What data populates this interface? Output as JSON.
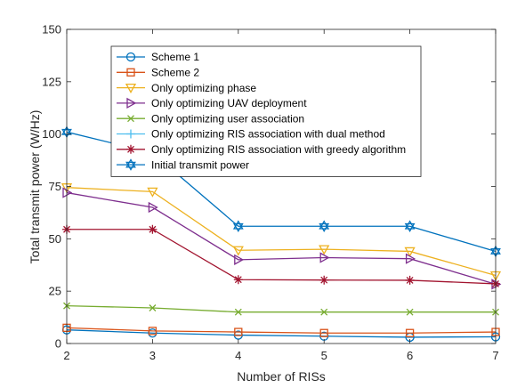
{
  "chart_data": {
    "type": "line",
    "title": "",
    "xlabel": "Number of RISs",
    "ylabel": "Total transmit power (W/Hz)",
    "xlim": [
      2,
      7
    ],
    "ylim": [
      0,
      150
    ],
    "x": [
      2,
      3,
      4,
      5,
      6,
      7
    ],
    "xticks": [
      "2",
      "3",
      "4",
      "5",
      "6",
      "7"
    ],
    "yticks": [
      "0",
      "25",
      "50",
      "75",
      "100",
      "125",
      "150"
    ],
    "grid": false,
    "box": true,
    "legend_position": "top-center",
    "series": [
      {
        "name": "Scheme 1",
        "marker": "circle",
        "color": "#0072BD",
        "values": [
          6.5,
          5,
          4,
          3.5,
          3,
          3.2
        ]
      },
      {
        "name": "Scheme 2",
        "marker": "square",
        "color": "#D95319",
        "values": [
          7.5,
          6,
          5.5,
          5,
          5,
          5.5
        ]
      },
      {
        "name": "Only optimizing phase",
        "marker": "triangle-down",
        "color": "#EDB120",
        "values": [
          74.5,
          72.5,
          44.5,
          45,
          44,
          32.5
        ]
      },
      {
        "name": "Only optimizing UAV deployment",
        "marker": "triangle-right",
        "color": "#7E2F8E",
        "values": [
          72,
          65,
          40,
          41,
          40.5,
          28.3
        ]
      },
      {
        "name": "Only optimizing user association",
        "marker": "x",
        "color": "#77AC30",
        "values": [
          18,
          17,
          15,
          15,
          15,
          15
        ]
      },
      {
        "name": "Only optimizing RIS association with dual method",
        "marker": "plus",
        "color": "#4DBEEE",
        "values": [
          null,
          null,
          null,
          null,
          null,
          null
        ]
      },
      {
        "name": "Only optimizing RIS association with greedy algorithm",
        "marker": "asterisk",
        "color": "#A2142F",
        "values": [
          54.5,
          54.5,
          30.5,
          30.3,
          30.2,
          28.5
        ]
      },
      {
        "name": "Initial transmit power",
        "marker": "hexagram",
        "color": "#0072BD",
        "values": [
          101,
          91,
          56,
          56,
          56,
          44
        ]
      }
    ]
  }
}
